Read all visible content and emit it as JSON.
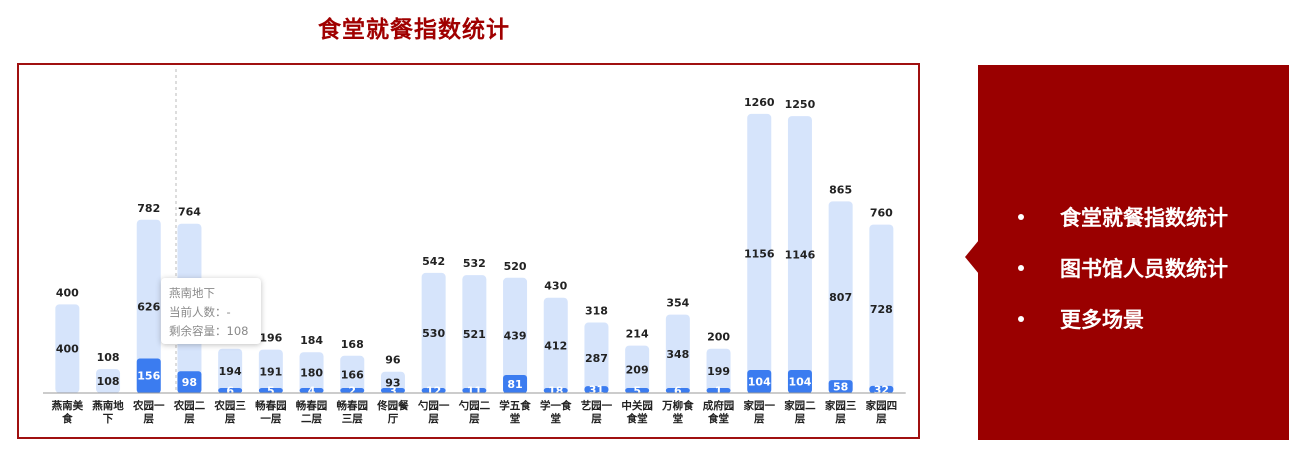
{
  "title": "食堂就餐指数统计",
  "panel": {
    "items": [
      "食堂就餐指数统计",
      "图书馆人员数统计",
      "更多场景"
    ]
  },
  "tooltip": {
    "name": "燕南地下",
    "line1": "当前人数：-",
    "line2": "剩余容量：108"
  },
  "colors": {
    "accent": "#9a0000",
    "capacity_bar": "#d6e4fb",
    "current_bar": "#3b7cf0"
  },
  "chart_data": {
    "type": "bar",
    "categories": [
      [
        "燕南美",
        "食"
      ],
      [
        "燕南地",
        "下"
      ],
      [
        "农园一",
        "层"
      ],
      [
        "农园二",
        "层"
      ],
      [
        "农园三",
        "层"
      ],
      [
        "畅春园",
        "一层"
      ],
      [
        "畅春园",
        "二层"
      ],
      [
        "畅春园",
        "三层"
      ],
      [
        "佟园餐",
        "厅"
      ],
      [
        "勺园一",
        "层"
      ],
      [
        "勺园二",
        "层"
      ],
      [
        "学五食",
        "堂"
      ],
      [
        "学一食",
        "堂"
      ],
      [
        "艺园一",
        "层"
      ],
      [
        "中关园",
        "食堂"
      ],
      [
        "万柳食",
        "堂"
      ],
      [
        "成府园",
        "食堂"
      ],
      [
        "家园一",
        "层"
      ],
      [
        "家园二",
        "层"
      ],
      [
        "家园三",
        "层"
      ],
      [
        "家园四",
        "层"
      ]
    ],
    "series": [
      {
        "name": "",
        "values": [
          0,
          null,
          156,
          98,
          6,
          5,
          4,
          2,
          3,
          12,
          11,
          81,
          18,
          31,
          5,
          6,
          1,
          104,
          104,
          58,
          32
        ]
      },
      {
        "name": "",
        "values": [
          400,
          108,
          626,
          666,
          194,
          191,
          180,
          166,
          93,
          530,
          521,
          439,
          412,
          287,
          209,
          348,
          199,
          1156,
          1146,
          807,
          728
        ]
      },
      {
        "name": "",
        "values": [
          400,
          108,
          782,
          764,
          200,
          196,
          184,
          168,
          96,
          542,
          532,
          520,
          430,
          318,
          214,
          354,
          200,
          1260,
          1250,
          865,
          760
        ]
      }
    ],
    "ylim": [
      0,
      1300
    ],
    "grid": false,
    "legend": "none"
  }
}
